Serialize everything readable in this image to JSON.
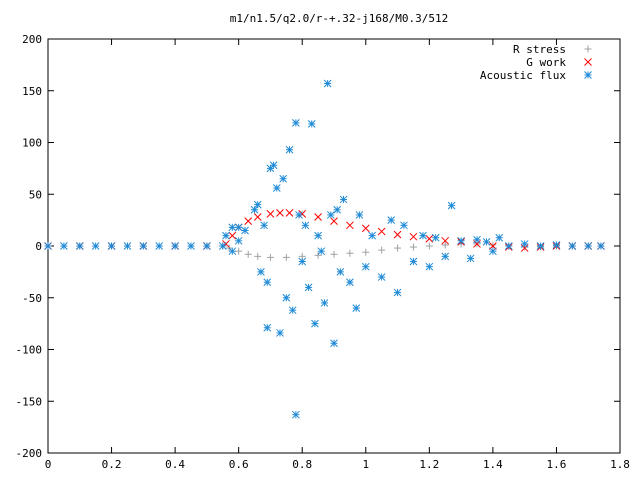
{
  "chart_data": {
    "type": "scatter",
    "title": "m1/n1.5/q2.0/r-+.32-j168/M0.3/512",
    "xlabel": "",
    "ylabel": "",
    "xlim": [
      0,
      1.8
    ],
    "ylim": [
      -200,
      200
    ],
    "x_ticks": [
      0,
      0.2,
      0.4,
      0.6,
      0.8,
      1,
      1.2,
      1.4,
      1.6,
      1.8
    ],
    "x_tick_labels": [
      "0",
      "0.2",
      "0.4",
      "0.6",
      "0.8",
      "1",
      "1.2",
      "1.4",
      "1.6",
      "1.8"
    ],
    "y_ticks": [
      -200,
      -150,
      -100,
      -50,
      0,
      50,
      100,
      150,
      200
    ],
    "y_tick_labels": [
      "-200",
      "-150",
      "-100",
      "-50",
      "0",
      "50",
      "100",
      "150",
      "200"
    ],
    "grid": false,
    "legend_position": "top-right",
    "series": [
      {
        "name": "R stress",
        "marker": "plus",
        "color": "#a0a0a0",
        "points": [
          [
            0.0,
            0
          ],
          [
            0.1,
            0
          ],
          [
            0.2,
            0
          ],
          [
            0.3,
            0
          ],
          [
            0.4,
            0
          ],
          [
            0.5,
            0
          ],
          [
            0.55,
            0
          ],
          [
            0.57,
            -2
          ],
          [
            0.6,
            -5
          ],
          [
            0.63,
            -8
          ],
          [
            0.66,
            -10
          ],
          [
            0.7,
            -11
          ],
          [
            0.75,
            -11
          ],
          [
            0.8,
            -10
          ],
          [
            0.85,
            -9
          ],
          [
            0.9,
            -8
          ],
          [
            0.95,
            -7
          ],
          [
            1.0,
            -6
          ],
          [
            1.05,
            -4
          ],
          [
            1.1,
            -2
          ],
          [
            1.15,
            -1
          ],
          [
            1.2,
            0
          ],
          [
            1.25,
            1
          ],
          [
            1.3,
            2
          ],
          [
            1.35,
            2
          ],
          [
            1.4,
            1
          ],
          [
            1.45,
            0
          ],
          [
            1.5,
            -1
          ],
          [
            1.55,
            -1
          ],
          [
            1.6,
            0
          ],
          [
            1.65,
            0
          ],
          [
            1.7,
            0
          ],
          [
            1.74,
            0
          ]
        ]
      },
      {
        "name": "G work",
        "marker": "cross",
        "color": "#ff0000",
        "points": [
          [
            0.0,
            0
          ],
          [
            0.1,
            0
          ],
          [
            0.2,
            0
          ],
          [
            0.3,
            0
          ],
          [
            0.4,
            0
          ],
          [
            0.5,
            0
          ],
          [
            0.56,
            2
          ],
          [
            0.58,
            10
          ],
          [
            0.6,
            18
          ],
          [
            0.63,
            24
          ],
          [
            0.66,
            28
          ],
          [
            0.7,
            31
          ],
          [
            0.73,
            32
          ],
          [
            0.76,
            32
          ],
          [
            0.8,
            31
          ],
          [
            0.85,
            28
          ],
          [
            0.9,
            24
          ],
          [
            0.95,
            20
          ],
          [
            1.0,
            17
          ],
          [
            1.05,
            14
          ],
          [
            1.1,
            11
          ],
          [
            1.15,
            9
          ],
          [
            1.2,
            7
          ],
          [
            1.25,
            5
          ],
          [
            1.3,
            4
          ],
          [
            1.35,
            2
          ],
          [
            1.4,
            0
          ],
          [
            1.45,
            -1
          ],
          [
            1.5,
            -2
          ],
          [
            1.55,
            -1
          ],
          [
            1.6,
            0
          ],
          [
            1.65,
            0
          ],
          [
            1.7,
            0
          ],
          [
            1.74,
            0
          ]
        ]
      },
      {
        "name": "Acoustic flux",
        "marker": "star",
        "color": "#1e8ad6",
        "points": [
          [
            0.0,
            0
          ],
          [
            0.05,
            0
          ],
          [
            0.1,
            0
          ],
          [
            0.15,
            0
          ],
          [
            0.2,
            0
          ],
          [
            0.25,
            0
          ],
          [
            0.3,
            0
          ],
          [
            0.35,
            0
          ],
          [
            0.4,
            0
          ],
          [
            0.45,
            0
          ],
          [
            0.5,
            0
          ],
          [
            0.55,
            0
          ],
          [
            0.56,
            10
          ],
          [
            0.58,
            18
          ],
          [
            0.6,
            18
          ],
          [
            0.62,
            15
          ],
          [
            0.58,
            -5
          ],
          [
            0.6,
            5
          ],
          [
            0.65,
            35
          ],
          [
            0.66,
            40
          ],
          [
            0.67,
            -25
          ],
          [
            0.68,
            20
          ],
          [
            0.69,
            -35
          ],
          [
            0.69,
            -79
          ],
          [
            0.7,
            75
          ],
          [
            0.71,
            78
          ],
          [
            0.72,
            56
          ],
          [
            0.73,
            -84
          ],
          [
            0.74,
            65
          ],
          [
            0.75,
            -50
          ],
          [
            0.76,
            93
          ],
          [
            0.77,
            -62
          ],
          [
            0.78,
            119
          ],
          [
            0.78,
            -163
          ],
          [
            0.79,
            30
          ],
          [
            0.8,
            -15
          ],
          [
            0.81,
            20
          ],
          [
            0.82,
            -40
          ],
          [
            0.83,
            118
          ],
          [
            0.84,
            -75
          ],
          [
            0.85,
            10
          ],
          [
            0.86,
            -5
          ],
          [
            0.87,
            -55
          ],
          [
            0.88,
            157
          ],
          [
            0.89,
            30
          ],
          [
            0.9,
            -94
          ],
          [
            0.91,
            35
          ],
          [
            0.92,
            -25
          ],
          [
            0.93,
            45
          ],
          [
            0.95,
            -35
          ],
          [
            0.97,
            -60
          ],
          [
            0.98,
            30
          ],
          [
            1.0,
            -20
          ],
          [
            1.02,
            10
          ],
          [
            1.05,
            -30
          ],
          [
            1.08,
            25
          ],
          [
            1.1,
            -45
          ],
          [
            1.12,
            20
          ],
          [
            1.15,
            -15
          ],
          [
            1.18,
            10
          ],
          [
            1.2,
            -20
          ],
          [
            1.22,
            8
          ],
          [
            1.25,
            -10
          ],
          [
            1.27,
            39
          ],
          [
            1.3,
            5
          ],
          [
            1.33,
            -12
          ],
          [
            1.35,
            6
          ],
          [
            1.38,
            4
          ],
          [
            1.4,
            -5
          ],
          [
            1.42,
            8
          ],
          [
            1.45,
            0
          ],
          [
            1.5,
            2
          ],
          [
            1.55,
            0
          ],
          [
            1.6,
            1
          ],
          [
            1.65,
            0
          ],
          [
            1.7,
            0
          ],
          [
            1.74,
            0
          ]
        ]
      }
    ]
  }
}
